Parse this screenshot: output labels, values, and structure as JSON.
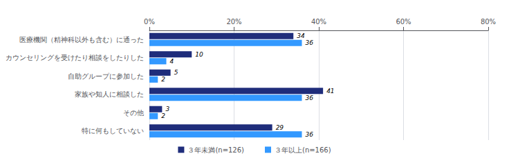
{
  "chart_data": {
    "type": "bar",
    "orientation": "horizontal",
    "categories": [
      "医療機関（精神科以外も含む）に通った",
      "カウンセリングを受けたり相談をしたりした",
      "自助グループに参加した",
      "家族や知人に相談した",
      "その他",
      "特に何もしていない"
    ],
    "series": [
      {
        "name": "３年未満(n=126)",
        "color": "#1F2D7B",
        "values": [
          34,
          10,
          5,
          41,
          3,
          29
        ]
      },
      {
        "name": "３年以上(n=166)",
        "color": "#3399FF",
        "values": [
          36,
          4,
          2,
          36,
          2,
          36
        ]
      }
    ],
    "xlim": [
      0,
      80
    ],
    "xticks": [
      {
        "value": 0,
        "label": "0%"
      },
      {
        "value": 20,
        "label": "20%"
      },
      {
        "value": 40,
        "label": "40%"
      },
      {
        "value": 60,
        "label": "60%"
      },
      {
        "value": 80,
        "label": "80%"
      }
    ],
    "grid": true,
    "legend": "bottom",
    "data_labels": true
  }
}
